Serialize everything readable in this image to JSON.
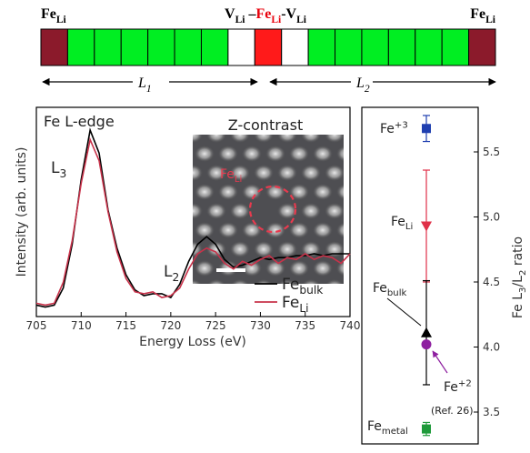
{
  "diagram": {
    "left_label": [
      {
        "t": "Fe",
        "sub": "Li"
      }
    ],
    "center_label": [
      {
        "t": "V",
        "sub": "Li"
      },
      {
        "t": " –"
      },
      {
        "t": "Fe",
        "sub": "Li",
        "color": "#e8000b"
      },
      {
        "t": "-"
      },
      {
        "t": "V",
        "sub": "Li"
      }
    ],
    "right_label": [
      {
        "t": "Fe",
        "sub": "Li"
      }
    ],
    "cells": [
      "#8b1a2b",
      "#00ee22",
      "#00ee22",
      "#00ee22",
      "#00ee22",
      "#00ee22",
      "#00ee22",
      "#ffffff",
      "#ff1a1a",
      "#ffffff",
      "#00ee22",
      "#00ee22",
      "#00ee22",
      "#00ee22",
      "#00ee22",
      "#00ee22",
      "#8b1a2b"
    ],
    "left_length": [
      {
        "t": "L",
        "sub": "1"
      }
    ],
    "right_length": [
      {
        "t": "L",
        "sub": "2"
      }
    ]
  },
  "chart_data": [
    {
      "type": "line",
      "title": "Fe L-edge",
      "xlabel": "Energy Loss (eV)",
      "ylabel": "Intensity (arb. units)",
      "xlim": [
        705,
        740
      ],
      "xticks": [
        705,
        710,
        715,
        720,
        725,
        730,
        735,
        740
      ],
      "ylim": [
        0,
        1.1
      ],
      "x": [
        705,
        706,
        707,
        708,
        709,
        710,
        711,
        712,
        713,
        714,
        715,
        716,
        717,
        718,
        719,
        720,
        721,
        722,
        723,
        724,
        725,
        726,
        727,
        728,
        729,
        730,
        731,
        732,
        733,
        734,
        735,
        736,
        737,
        738,
        739,
        740
      ],
      "series": [
        {
          "name": [
            {
              "t": "Fe",
              "sub": "bulk"
            }
          ],
          "color": "#000000",
          "values": [
            0.06,
            0.05,
            0.06,
            0.15,
            0.38,
            0.72,
            0.98,
            0.86,
            0.56,
            0.36,
            0.22,
            0.14,
            0.11,
            0.12,
            0.12,
            0.1,
            0.17,
            0.29,
            0.38,
            0.42,
            0.38,
            0.3,
            0.26,
            0.27,
            0.29,
            0.31,
            0.3,
            0.31,
            0.31,
            0.32,
            0.32,
            0.33,
            0.32,
            0.33,
            0.33,
            0.33
          ]
        },
        {
          "name": [
            {
              "t": "Fe",
              "sub": "Li"
            }
          ],
          "color": "#c8324a",
          "values": [
            0.07,
            0.06,
            0.07,
            0.18,
            0.4,
            0.7,
            0.93,
            0.82,
            0.55,
            0.34,
            0.2,
            0.13,
            0.12,
            0.13,
            0.1,
            0.11,
            0.15,
            0.25,
            0.33,
            0.36,
            0.34,
            0.28,
            0.25,
            0.29,
            0.27,
            0.3,
            0.32,
            0.28,
            0.31,
            0.3,
            0.33,
            0.3,
            0.32,
            0.31,
            0.28,
            0.33
          ]
        }
      ],
      "peak_labels": [
        [
          {
            "t": "L",
            "sub": "3"
          }
        ],
        [
          {
            "t": "L",
            "sub": "2"
          }
        ]
      ],
      "inset": {
        "title": "Z-contrast",
        "marker_label": [
          {
            "t": "Fe",
            "sub": "Li"
          }
        ]
      }
    },
    {
      "type": "errorbar",
      "ylabel": [
        {
          "t": "Fe L",
          "sub": "3"
        },
        {
          "t": "/L",
          "sub": "2"
        },
        {
          "t": " ratio"
        }
      ],
      "ylim": [
        3.25,
        5.85
      ],
      "yticks": [
        3.5,
        {
          "value": 4.0,
          "label": "4.0"
        },
        4.5,
        {
          "value": 5.0,
          "label": "5.0"
        },
        5.5
      ],
      "points": [
        {
          "label": [
            {
              "t": "Fe",
              "sup": "+3"
            }
          ],
          "value": 5.68,
          "error": 0.1,
          "color": "#1f3fb0",
          "marker": "square"
        },
        {
          "label": [
            {
              "t": "Fe",
              "sub": "Li"
            }
          ],
          "value": 4.93,
          "error": 0.43,
          "color": "#e03048",
          "marker": "triangle-down"
        },
        {
          "label": [
            {
              "t": "Fe",
              "sub": "bulk"
            }
          ],
          "value": 4.11,
          "error": 0.4,
          "color": "#000000",
          "marker": "triangle-up"
        },
        {
          "label": [
            {
              "t": "Fe",
              "sup": "+2"
            }
          ],
          "value": 4.02,
          "color": "#8e1fa0",
          "marker": "circle"
        },
        {
          "label": [
            {
              "t": "Fe",
              "sub": "metal"
            }
          ],
          "value": 3.37,
          "error": 0.05,
          "color": "#1f9a3a",
          "marker": "square"
        }
      ],
      "annotation": "(Ref. 26)"
    }
  ]
}
